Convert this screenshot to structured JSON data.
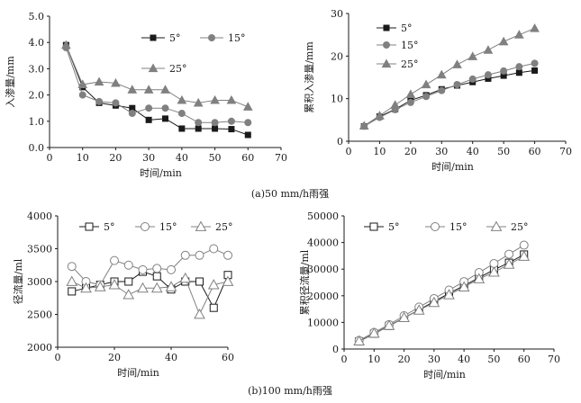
{
  "captions": {
    "a": "(a)50 mm/h雨强",
    "b": "(b)100 mm/h雨强"
  },
  "chart_data": [
    {
      "id": "a-left",
      "type": "line",
      "ylabel": "入渗量/mm",
      "xlabel": "时间/min",
      "xlim": [
        0,
        70
      ],
      "ylim": [
        0,
        5
      ],
      "xticks": [
        0,
        10,
        20,
        30,
        40,
        50,
        60,
        70
      ],
      "yticks": [
        "0.0",
        "1.0",
        "2.0",
        "3.0",
        "4.0",
        "5.0"
      ],
      "x": [
        5,
        10,
        15,
        20,
        25,
        30,
        35,
        40,
        45,
        50,
        55,
        60
      ],
      "series": [
        {
          "name": "5°",
          "marker": "filled-square",
          "color": "#1a1a1a",
          "values": [
            3.9,
            2.3,
            1.7,
            1.6,
            1.5,
            1.05,
            1.1,
            0.72,
            0.72,
            0.72,
            0.7,
            0.48
          ]
        },
        {
          "name": "15°",
          "marker": "filled-circle",
          "color": "#808080",
          "values": [
            3.8,
            2.0,
            1.75,
            1.7,
            1.3,
            1.5,
            1.5,
            1.3,
            0.95,
            0.95,
            1.0,
            0.95
          ]
        },
        {
          "name": "25°",
          "marker": "filled-triangle",
          "color": "#808080",
          "values": [
            3.9,
            2.4,
            2.5,
            2.45,
            2.2,
            2.2,
            2.2,
            1.8,
            1.7,
            1.8,
            1.8,
            1.55
          ]
        }
      ]
    },
    {
      "id": "a-right",
      "type": "line",
      "ylabel": "累积入渗量/mm",
      "xlabel": "时间/min",
      "xlim": [
        0,
        70
      ],
      "ylim": [
        0,
        30
      ],
      "xticks": [
        0,
        10,
        20,
        30,
        40,
        50,
        60,
        70
      ],
      "yticks": [
        0,
        10,
        20,
        30
      ],
      "x": [
        5,
        10,
        15,
        20,
        25,
        30,
        35,
        40,
        45,
        50,
        55,
        60
      ],
      "series": [
        {
          "name": "5°",
          "marker": "filled-square",
          "color": "#1a1a1a",
          "values": [
            3.5,
            5.8,
            7.5,
            9.6,
            10.8,
            12.2,
            13.1,
            13.9,
            14.7,
            15.4,
            16.1,
            16.6
          ]
        },
        {
          "name": "15°",
          "marker": "filled-circle",
          "color": "#808080",
          "values": [
            3.5,
            5.6,
            7.4,
            9.1,
            10.5,
            11.9,
            13.3,
            14.6,
            15.6,
            16.5,
            17.5,
            18.3
          ]
        },
        {
          "name": "25°",
          "marker": "filled-triangle",
          "color": "#808080",
          "values": [
            3.6,
            6.0,
            8.5,
            11.0,
            13.3,
            15.6,
            18.0,
            19.9,
            21.4,
            23.4,
            25.0,
            26.5
          ]
        }
      ]
    },
    {
      "id": "b-left",
      "type": "line",
      "ylabel": "径流量/ml",
      "xlabel": "时间/min",
      "xlim": [
        0,
        60
      ],
      "ylim": [
        2000,
        4000
      ],
      "xticks": [
        0,
        20,
        40,
        60
      ],
      "yticks": [
        2000,
        2500,
        3000,
        3500,
        4000
      ],
      "x": [
        5,
        10,
        15,
        20,
        25,
        30,
        35,
        40,
        45,
        50,
        55,
        60
      ],
      "series": [
        {
          "name": "5°",
          "marker": "open-square",
          "color": "#1a1a1a",
          "values": [
            2850,
            2900,
            2950,
            3000,
            3000,
            3150,
            3080,
            2880,
            3000,
            3000,
            2600,
            3100
          ]
        },
        {
          "name": "15°",
          "marker": "open-circle",
          "color": "#808080",
          "values": [
            3230,
            3000,
            2950,
            3320,
            3250,
            3180,
            3200,
            3180,
            3400,
            3400,
            3500,
            3400
          ]
        },
        {
          "name": "25°",
          "marker": "open-triangle",
          "color": "#808080",
          "values": [
            3000,
            2900,
            2920,
            2950,
            2800,
            2900,
            2900,
            2920,
            3050,
            2500,
            2950,
            3000
          ]
        }
      ]
    },
    {
      "id": "b-right",
      "type": "line",
      "ylabel": "累积径流量/ml",
      "xlabel": "时间/min",
      "xlim": [
        0,
        70
      ],
      "ylim": [
        0,
        50000
      ],
      "xticks": [
        0,
        10,
        20,
        30,
        40,
        50,
        60,
        70
      ],
      "yticks": [
        0,
        10000,
        20000,
        30000,
        40000,
        50000
      ],
      "x": [
        5,
        10,
        15,
        20,
        25,
        30,
        35,
        40,
        45,
        50,
        55,
        60
      ],
      "series": [
        {
          "name": "5°",
          "marker": "open-square",
          "color": "#1a1a1a",
          "values": [
            2850,
            5750,
            8700,
            11700,
            14700,
            17850,
            20900,
            23800,
            26800,
            29800,
            32400,
            35500
          ]
        },
        {
          "name": "15°",
          "marker": "open-circle",
          "color": "#808080",
          "values": [
            3230,
            6230,
            9180,
            12500,
            15750,
            18930,
            22130,
            25310,
            28710,
            32110,
            35610,
            39010
          ]
        },
        {
          "name": "25°",
          "marker": "open-triangle",
          "color": "#808080",
          "values": [
            3000,
            5900,
            8820,
            11770,
            14570,
            17470,
            20370,
            23290,
            26340,
            28840,
            31790,
            34790
          ]
        }
      ]
    }
  ]
}
